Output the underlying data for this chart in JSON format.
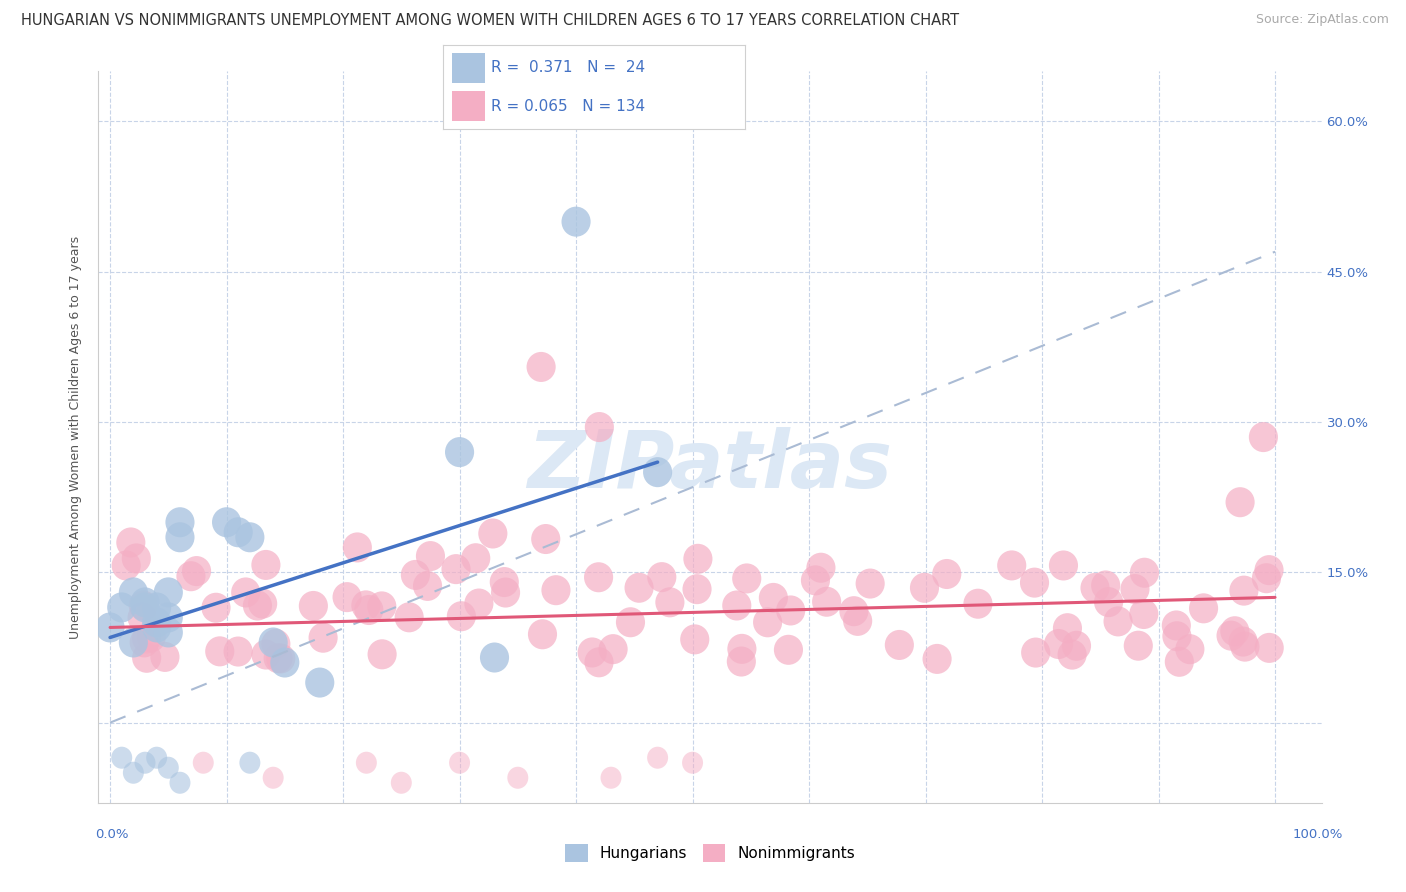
{
  "title": "HUNGARIAN VS NONIMMIGRANTS UNEMPLOYMENT AMONG WOMEN WITH CHILDREN AGES 6 TO 17 YEARS CORRELATION CHART",
  "source": "Source: ZipAtlas.com",
  "ylabel_label": "Unemployment Among Women with Children Ages 6 to 17 years",
  "right_ytick_values": [
    0.0,
    0.15,
    0.3,
    0.45,
    0.6
  ],
  "right_ytick_labels": [
    "",
    "15.0%",
    "30.0%",
    "45.0%",
    "60.0%"
  ],
  "xlim": [
    -0.01,
    1.04
  ],
  "ylim": [
    -0.08,
    0.65
  ],
  "legend_R_color": "#4472c4",
  "hungarian_color": "#aac4e0",
  "nonimmigrant_color": "#f4aec4",
  "hungarian_line_color": "#4472c4",
  "nonimmigrant_line_color": "#e05878",
  "dashed_line_color": "#aabbd4",
  "watermark_color": "#dce8f5",
  "R_hun": 0.371,
  "N_hun": 24,
  "R_non": 0.065,
  "N_non": 134,
  "hun_line_x0": 0.0,
  "hun_line_y0": 0.085,
  "hun_line_x1": 0.47,
  "hun_line_y1": 0.26,
  "non_line_x0": 0.0,
  "non_line_y0": 0.095,
  "non_line_x1": 1.0,
  "non_line_y1": 0.125,
  "dash_line_x0": 0.0,
  "dash_line_y0": 0.0,
  "dash_line_x1": 1.0,
  "dash_line_y1": 0.47,
  "background_color": "#ffffff",
  "grid_color": "#c8d4e8",
  "title_fontsize": 10.5,
  "source_fontsize": 9,
  "legend_fontsize": 11,
  "ylabel_fontsize": 9,
  "tick_fontsize": 9.5
}
